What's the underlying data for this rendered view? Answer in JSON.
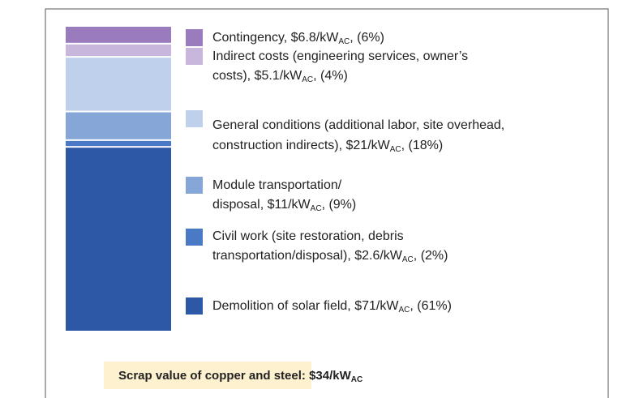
{
  "chart_data": {
    "type": "bar",
    "stacked": true,
    "series": [
      {
        "name": "Contingency",
        "color": "#9a7bbd",
        "values": [
          6.8
        ],
        "legend_lines": [
          [
            "Contingency, $6.8/kW",
            "AC",
            ", (6%)"
          ]
        ]
      },
      {
        "name": "Indirect costs",
        "color": "#c9b6dc",
        "values": [
          5.1
        ],
        "legend_lines": [
          [
            "Indirect costs (engineering services, owner’s"
          ],
          [
            "costs), $5.1/kW",
            "AC",
            ", (4%)"
          ]
        ]
      },
      {
        "name": "General conditions",
        "color": "#bfd0ec",
        "values": [
          21
        ],
        "legend_lines": [
          [
            "General conditions (additional labor, site overhead,"
          ],
          [
            "construction indirects), $21/kW",
            "AC",
            ", (18%)"
          ]
        ]
      },
      {
        "name": "Module transportation/disposal",
        "color": "#87a6d8",
        "values": [
          11
        ],
        "legend_lines": [
          [
            "Module transportation/"
          ],
          [
            "disposal, $11/kW",
            "AC",
            ", (9%)"
          ]
        ]
      },
      {
        "name": "Civil work",
        "color": "#4a79c6",
        "values": [
          2.6
        ],
        "legend_lines": [
          [
            "Civil work (site restoration, debris"
          ],
          [
            "transportation/disposal), $2.6/kW",
            "AC",
            ", (2%)"
          ]
        ]
      },
      {
        "name": "Demolition of solar field",
        "color": "#2d58a6",
        "values": [
          71
        ],
        "legend_lines": [
          [
            "Demolition of solar field, $71/kW",
            "AC",
            ", (61%)"
          ]
        ]
      }
    ],
    "footnote": [
      "Scrap value of copper and steel: $34/kW",
      "AC"
    ]
  }
}
